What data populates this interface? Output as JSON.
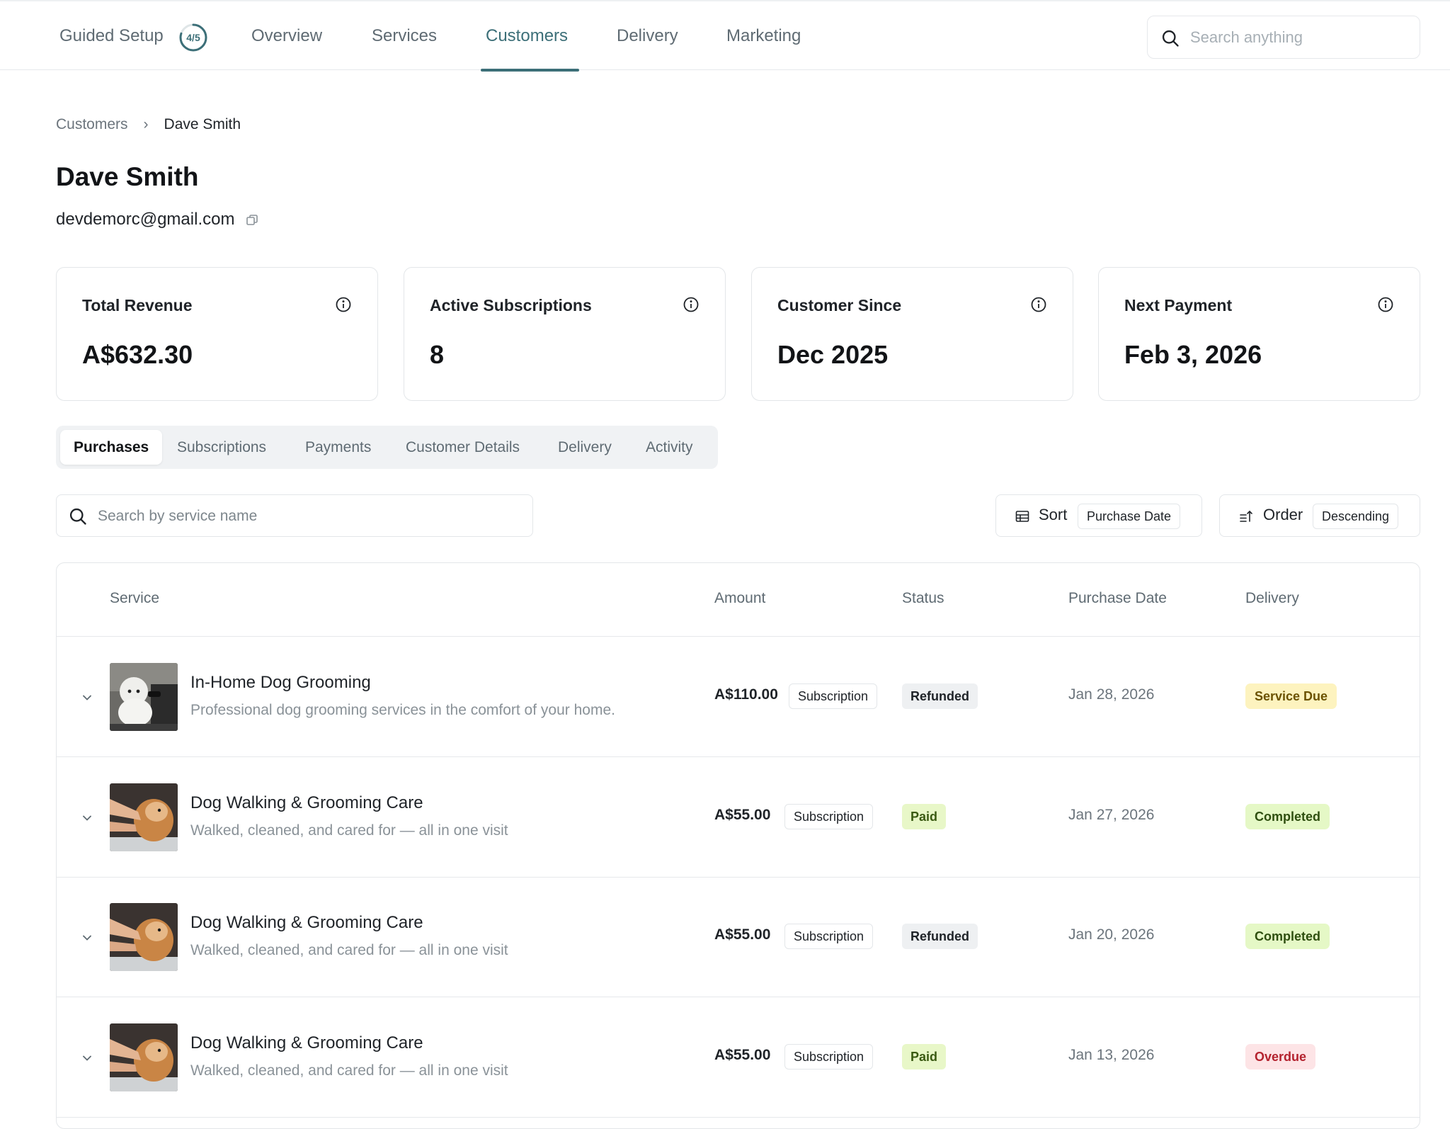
{
  "nav": {
    "guided_setup": "Guided Setup",
    "guided_progress": "4/5",
    "guided_progress_fraction": 0.8,
    "items": [
      "Overview",
      "Services",
      "Customers",
      "Delivery",
      "Marketing"
    ],
    "active": "Customers",
    "search_placeholder": "Search anything"
  },
  "breadcrumb": {
    "parent": "Customers",
    "separator": "›",
    "current": "Dave Smith"
  },
  "customer": {
    "name": "Dave Smith",
    "email": "devdemorc@gmail.com"
  },
  "stats": [
    {
      "title": "Total Revenue",
      "value": "A$632.30"
    },
    {
      "title": "Active Subscriptions",
      "value": "8"
    },
    {
      "title": "Customer Since",
      "value": "Dec 2025"
    },
    {
      "title": "Next Payment",
      "value": "Feb 3, 2026"
    }
  ],
  "tabs": [
    "Purchases",
    "Subscriptions",
    "Payments",
    "Customer Details",
    "Delivery",
    "Activity"
  ],
  "active_tab": "Purchases",
  "toolbar": {
    "search_placeholder": "Search by service name",
    "sort_label": "Sort",
    "sort_value": "Purchase Date",
    "order_label": "Order",
    "order_value": "Descending"
  },
  "table": {
    "headers": {
      "service": "Service",
      "amount": "Amount",
      "status": "Status",
      "purchase_date": "Purchase Date",
      "delivery": "Delivery"
    },
    "rows": [
      {
        "name": "In-Home Dog Grooming",
        "description": "Professional dog grooming services in the comfort of your home.",
        "amount": "A$110.00",
        "type": "Subscription",
        "status": "Refunded",
        "date": "Jan 28, 2026",
        "delivery": "Service Due",
        "thumb": "grooming-photo"
      },
      {
        "name": "Dog Walking & Grooming Care",
        "description": "Walked, cleaned, and cared for — all in one visit",
        "amount": "A$55.00",
        "type": "Subscription",
        "status": "Paid",
        "date": "Jan 27, 2026",
        "delivery": "Completed",
        "thumb": "walking-photo"
      },
      {
        "name": "Dog Walking & Grooming Care",
        "description": "Walked, cleaned, and cared for — all in one visit",
        "amount": "A$55.00",
        "type": "Subscription",
        "status": "Refunded",
        "date": "Jan 20, 2026",
        "delivery": "Completed",
        "thumb": "walking-photo"
      },
      {
        "name": "Dog Walking & Grooming Care",
        "description": "Walked, cleaned, and cared for — all in one visit",
        "amount": "A$55.00",
        "type": "Subscription",
        "status": "Paid",
        "date": "Jan 13, 2026",
        "delivery": "Overdue",
        "thumb": "walking-photo"
      }
    ]
  },
  "colors": {
    "accent": "#3c6f78",
    "status_refunded_bg": "#eef0f2",
    "status_paid_bg": "#e8f7c8",
    "delivery_due_bg": "#fdf3bf",
    "delivery_completed_bg": "#e5f8c6",
    "delivery_overdue_bg": "#fde4e6",
    "delivery_overdue_text": "#b4232f"
  }
}
